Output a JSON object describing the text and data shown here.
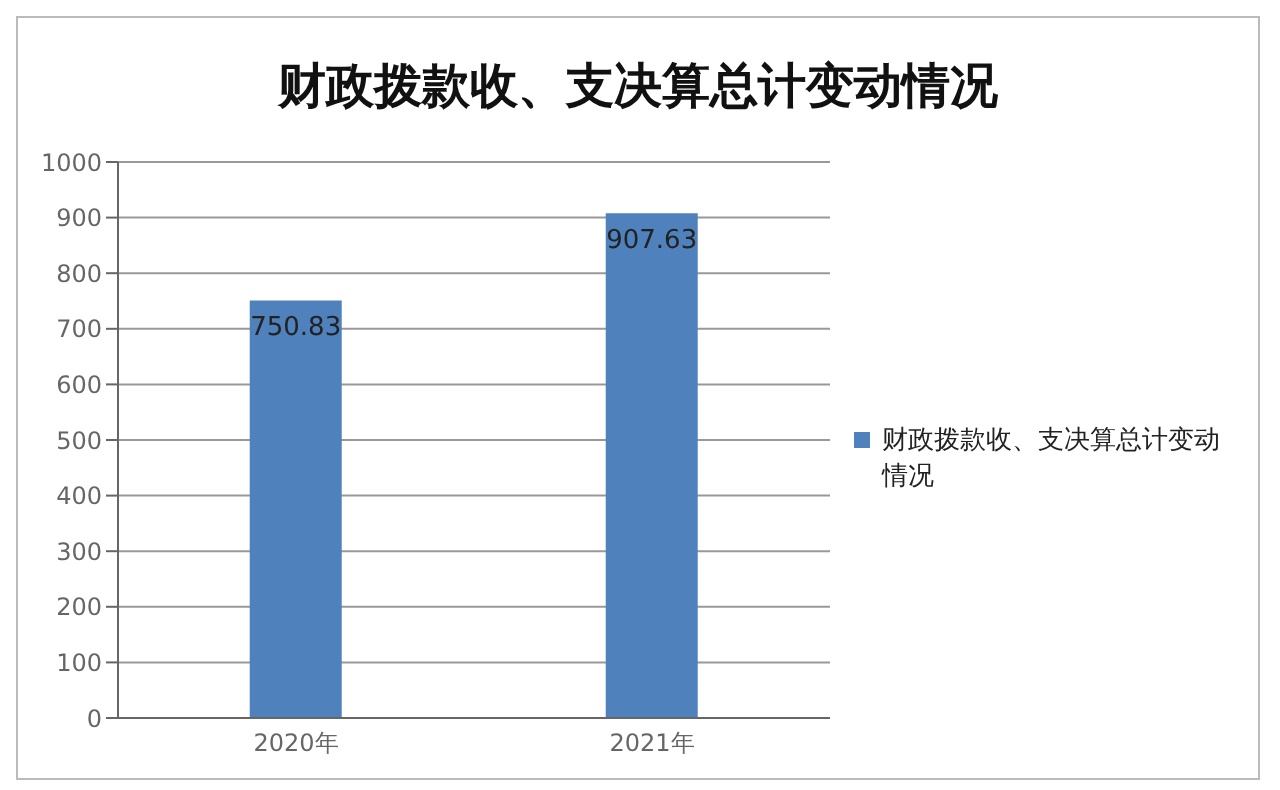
{
  "chart_data": {
    "type": "bar",
    "title": "财政拨款收、支决算总计变动情况",
    "categories": [
      "2020年",
      "2021年"
    ],
    "series": [
      {
        "name": "财政拨款收、支决算总计变动情况",
        "color": "#4f81bd",
        "values": [
          750.83,
          907.63
        ]
      }
    ],
    "ylim": [
      0,
      1000
    ],
    "yticks": [
      0,
      100,
      200,
      300,
      400,
      500,
      600,
      700,
      800,
      900,
      1000
    ],
    "grid": "y",
    "legend": "right",
    "data_labels": true
  }
}
